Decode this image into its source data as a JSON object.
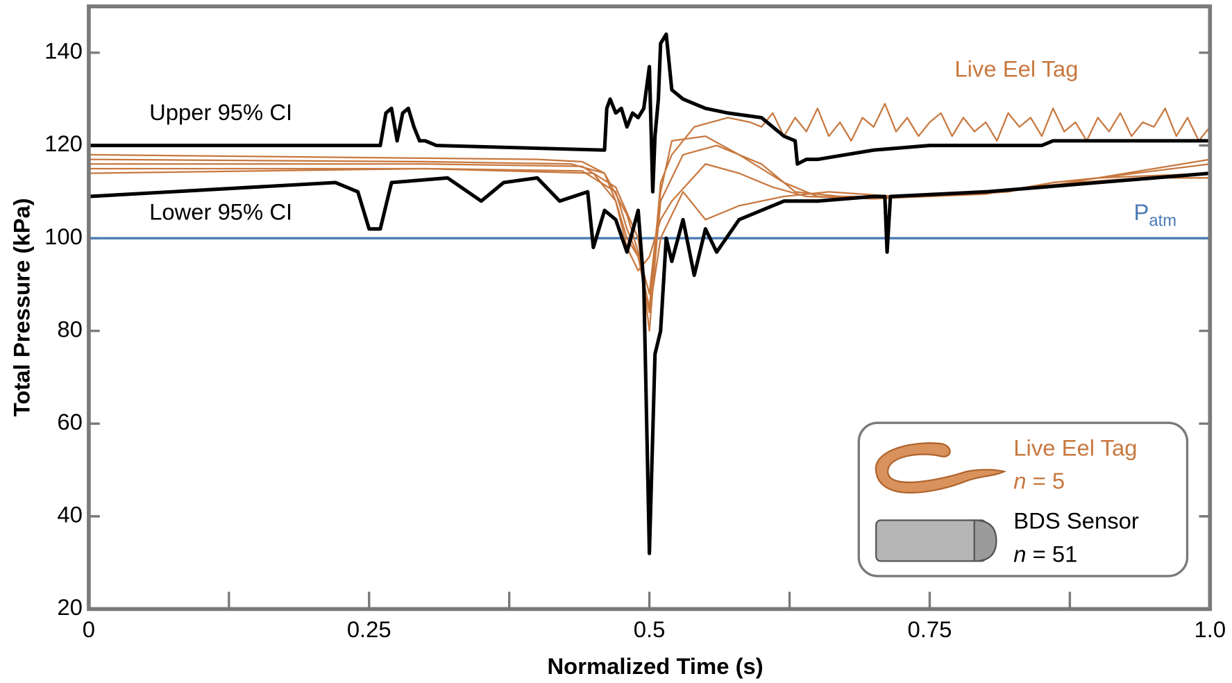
{
  "chart_data": {
    "type": "line",
    "xlabel": "Normalized Time (s)",
    "ylabel": "Total Pressure (kPa)",
    "xlim": [
      0,
      1.0
    ],
    "ylim": [
      20,
      150
    ],
    "xticks": [
      0,
      0.25,
      0.5,
      0.75,
      {
        "value": 1.0,
        "label": "1.0"
      }
    ],
    "xminor_ticks": [
      0.125,
      0.375,
      0.625,
      0.875
    ],
    "yticks": [
      20,
      40,
      60,
      80,
      100,
      120,
      140
    ],
    "reference_line": {
      "value": 100,
      "label": "P",
      "subscript": "atm",
      "color": "#4a7ab5"
    },
    "annotation": {
      "text": "Live Eel Tag",
      "color": "#c8783f"
    },
    "series": [
      {
        "name": "Upper 95% CI",
        "color": "#000000",
        "x": [
          0,
          0.26,
          0.265,
          0.27,
          0.275,
          0.28,
          0.285,
          0.29,
          0.295,
          0.3,
          0.31,
          0.46,
          0.462,
          0.465,
          0.47,
          0.475,
          0.48,
          0.485,
          0.49,
          0.495,
          0.5,
          0.503,
          0.505,
          0.508,
          0.51,
          0.515,
          0.52,
          0.53,
          0.55,
          0.57,
          0.6,
          0.62,
          0.63,
          0.632,
          0.64,
          0.65,
          0.7,
          0.75,
          0.85,
          0.86,
          0.9,
          1.0
        ],
        "values": [
          120,
          120,
          127,
          128,
          121,
          127,
          128,
          124,
          121,
          121,
          120,
          119,
          128,
          130,
          127,
          128,
          124,
          127,
          126,
          128,
          137,
          110,
          122,
          130,
          142,
          144,
          132,
          130,
          128,
          127,
          126,
          122,
          121,
          116,
          117,
          117,
          119,
          120,
          120,
          121,
          121,
          121
        ]
      },
      {
        "name": "Lower 95% CI",
        "color": "#000000",
        "x": [
          0,
          0.22,
          0.24,
          0.25,
          0.26,
          0.27,
          0.32,
          0.35,
          0.37,
          0.4,
          0.42,
          0.445,
          0.45,
          0.46,
          0.47,
          0.48,
          0.49,
          0.495,
          0.5,
          0.505,
          0.51,
          0.515,
          0.52,
          0.53,
          0.54,
          0.55,
          0.56,
          0.58,
          0.6,
          0.62,
          0.65,
          0.7,
          0.71,
          0.712,
          0.715,
          0.8,
          0.85,
          0.9,
          1.0
        ],
        "values": [
          109,
          112,
          110,
          102,
          102,
          112,
          113,
          108,
          112,
          113,
          108,
          110,
          98,
          106,
          104,
          97,
          106,
          90,
          32,
          75,
          80,
          100,
          95,
          104,
          92,
          102,
          97,
          104,
          106,
          108,
          108,
          109,
          109,
          97,
          109,
          110,
          111,
          112,
          114
        ]
      },
      {
        "color": "#c8783f",
        "x": [
          0,
          0.2,
          0.4,
          0.44,
          0.46,
          0.47,
          0.48,
          0.49,
          0.5,
          0.505,
          0.51,
          0.52,
          0.54,
          0.57,
          0.59,
          0.6,
          0.61,
          0.62,
          0.63,
          0.64,
          0.65,
          0.66,
          0.67,
          0.68,
          0.69,
          0.7,
          0.71,
          0.72,
          0.73,
          0.74,
          0.75,
          0.76,
          0.77,
          0.78,
          0.79,
          0.8,
          0.81,
          0.82,
          0.83,
          0.84,
          0.85,
          0.86,
          0.87,
          0.88,
          0.89,
          0.9,
          0.91,
          0.92,
          0.93,
          0.94,
          0.95,
          0.96,
          0.97,
          0.98,
          0.99,
          1.0
        ],
        "values": [
          118,
          117.5,
          117,
          116.5,
          114,
          108,
          100,
          96,
          85,
          98,
          112,
          118,
          124,
          126,
          125,
          124,
          127,
          122,
          126,
          123,
          128,
          122,
          125,
          121,
          126,
          124,
          129,
          123,
          126,
          122,
          125,
          127,
          122,
          126,
          123,
          125,
          121,
          127,
          124,
          126,
          122,
          128,
          123,
          125,
          121,
          126,
          123,
          127,
          122,
          125,
          124,
          128,
          122,
          126,
          121,
          124
        ]
      },
      {
        "color": "#c8783f",
        "x": [
          0,
          0.3,
          0.43,
          0.46,
          0.48,
          0.49,
          0.5,
          0.51,
          0.52,
          0.55,
          0.58,
          0.62,
          0.65,
          0.7,
          0.8,
          0.85,
          0.9,
          0.95,
          1.0
        ],
        "values": [
          117,
          116.5,
          116,
          114,
          105,
          97,
          88,
          110,
          121,
          122,
          118,
          112,
          109,
          108.5,
          110,
          111,
          113,
          115,
          117
        ]
      },
      {
        "color": "#c8783f",
        "x": [
          0,
          0.3,
          0.44,
          0.47,
          0.49,
          0.5,
          0.505,
          0.51,
          0.53,
          0.56,
          0.6,
          0.63,
          0.67,
          0.75,
          0.82,
          0.86,
          0.9,
          1.0
        ],
        "values": [
          116,
          116,
          115.5,
          111,
          100,
          80,
          95,
          108,
          118,
          120,
          116,
          110,
          109,
          109,
          110,
          112,
          113,
          116
        ]
      },
      {
        "color": "#c8783f",
        "x": [
          0,
          0.3,
          0.45,
          0.47,
          0.48,
          0.49,
          0.5,
          0.51,
          0.52,
          0.55,
          0.58,
          0.61,
          0.64,
          0.7,
          0.8,
          0.86,
          0.9,
          1.0
        ],
        "values": [
          115,
          115,
          114,
          108,
          98,
          93,
          96,
          104,
          108,
          116,
          114,
          111,
          109,
          108.5,
          109.5,
          112,
          113,
          114
        ]
      },
      {
        "color": "#c8783f",
        "x": [
          0,
          0.3,
          0.44,
          0.47,
          0.48,
          0.49,
          0.5,
          0.51,
          0.53,
          0.55,
          0.58,
          0.62,
          0.66,
          0.72,
          0.8,
          0.84,
          0.88,
          0.94,
          1.0
        ],
        "values": [
          114,
          115,
          114.5,
          110,
          102,
          96,
          84,
          100,
          110,
          104,
          107,
          109,
          110,
          109,
          110,
          111,
          112,
          113,
          113
        ]
      }
    ],
    "legend": [
      {
        "label": "Live Eel Tag",
        "n_symbol": "n",
        "n_text": "= 5",
        "color": "#c8783f"
      },
      {
        "label": "BDS Sensor",
        "n_symbol": "n",
        "n_text": "= 51",
        "color": "#000000"
      }
    ]
  }
}
